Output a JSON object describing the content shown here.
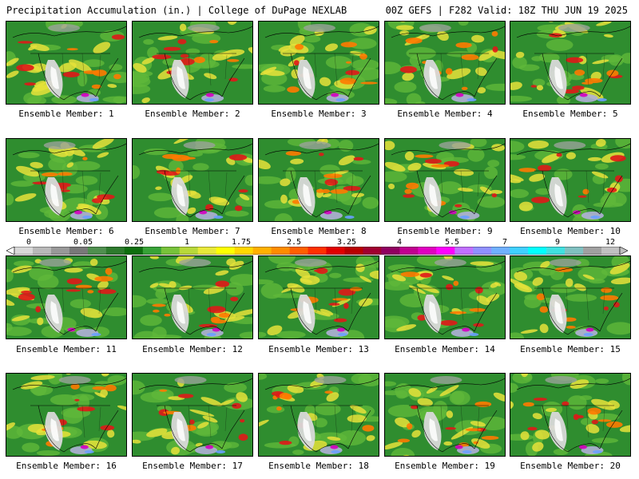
{
  "header": {
    "title": "Precipitation Accumulation (in.) | College of DuPage NEXLAB",
    "run_info": "00Z GEFS | F282 Valid: 18Z THU JUN 19 2025"
  },
  "colorbar": {
    "tick_labels": [
      "0",
      "0.05",
      "0.25",
      "1",
      "1.75",
      "2.5",
      "3.25",
      "4",
      "5.5",
      "7",
      "9",
      "12"
    ],
    "colors": [
      "#d8d8d8",
      "#b8b8b8",
      "#989898",
      "#787878",
      "#4f8f4f",
      "#2d7a2d",
      "#0e6e0e",
      "#37a237",
      "#77c23a",
      "#b8d83a",
      "#e8e83a",
      "#ffff00",
      "#ffd700",
      "#ffb000",
      "#ff8c00",
      "#ff6000",
      "#ff3000",
      "#e00000",
      "#b80000",
      "#a00030",
      "#900060",
      "#c00090",
      "#e000c0",
      "#ff00ff",
      "#c070ff",
      "#9090ff",
      "#70b0ff",
      "#40d0ff",
      "#00ffff",
      "#40e0e0",
      "#80c0c0",
      "#a0a0a0",
      "#c0c0c0"
    ]
  },
  "members": [
    {
      "label": "Ensemble Member: 1"
    },
    {
      "label": "Ensemble Member: 2"
    },
    {
      "label": "Ensemble Member: 3"
    },
    {
      "label": "Ensemble Member: 4"
    },
    {
      "label": "Ensemble Member: 5"
    },
    {
      "label": "Ensemble Member: 6"
    },
    {
      "label": "Ensemble Member: 7"
    },
    {
      "label": "Ensemble Member: 8"
    },
    {
      "label": "Ensemble Member: 9"
    },
    {
      "label": "Ensemble Member: 10"
    },
    {
      "label": "Ensemble Member: 11"
    },
    {
      "label": "Ensemble Member: 12"
    },
    {
      "label": "Ensemble Member: 13"
    },
    {
      "label": "Ensemble Member: 14"
    },
    {
      "label": "Ensemble Member: 15"
    },
    {
      "label": "Ensemble Member: 16"
    },
    {
      "label": "Ensemble Member: 17"
    },
    {
      "label": "Ensemble Member: 18"
    },
    {
      "label": "Ensemble Member: 19"
    },
    {
      "label": "Ensemble Member: 20"
    }
  ]
}
